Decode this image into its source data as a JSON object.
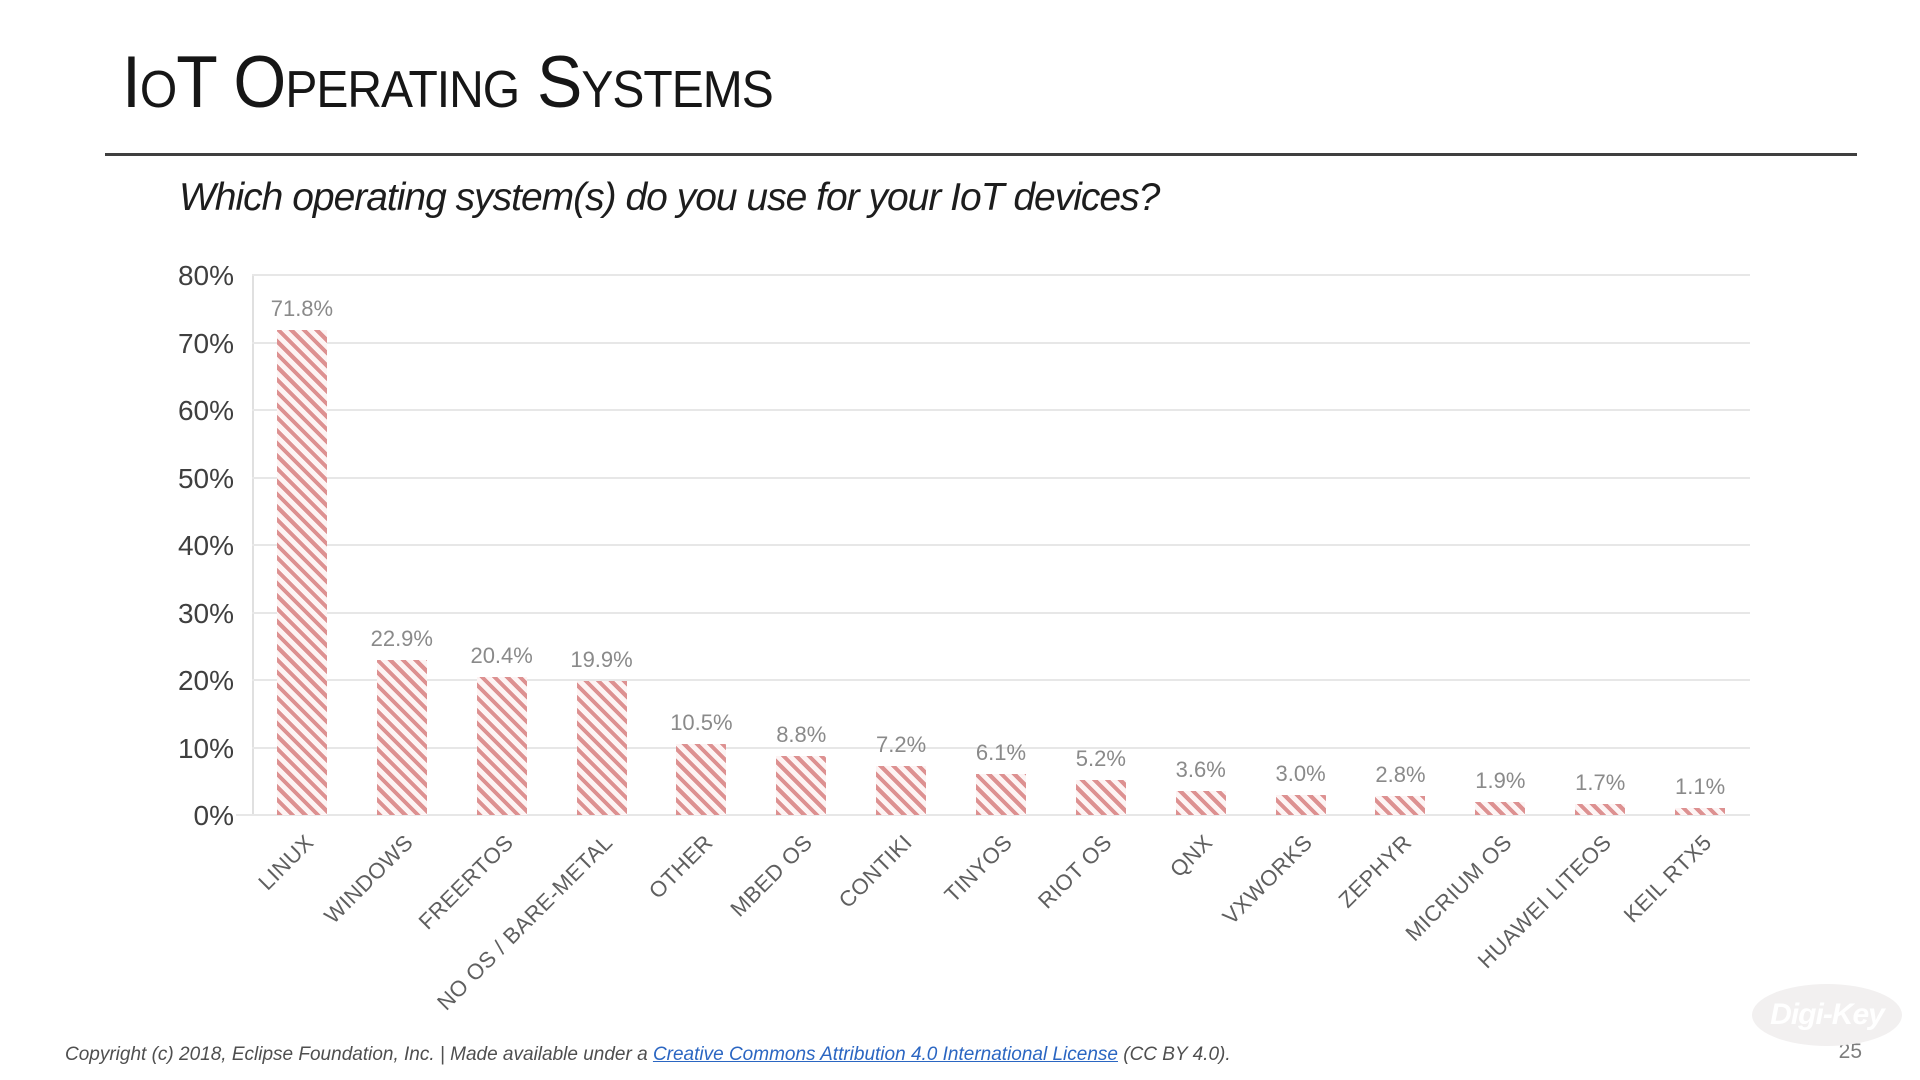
{
  "slide": {
    "title": "IoT Operating Systems",
    "subtitle": "Which operating system(s) do you use for your IoT devices?",
    "page_number": "25",
    "watermark_text": "Digi-Key"
  },
  "footer": {
    "copyright_prefix": "Copyright (c) 2018, Eclipse Foundation, Inc. | Made available under a ",
    "license_link_text": "Creative Commons Attribution 4.0 International License",
    "copyright_suffix": " (CC BY 4.0)."
  },
  "chart_data": {
    "type": "bar",
    "title": "Which operating system(s) do you use for your IoT devices?",
    "categories": [
      "LINUX",
      "WINDOWS",
      "FREERTOS",
      "NO OS / BARE-METAL",
      "OTHER",
      "MBED OS",
      "CONTIKI",
      "TINYOS",
      "RIOT OS",
      "QNX",
      "VXWORKS",
      "ZEPHYR",
      "MICRIUM OS",
      "HUAWEI LITEOS",
      "KEIL RTX5"
    ],
    "values": [
      71.8,
      22.9,
      20.4,
      19.9,
      10.5,
      8.8,
      7.2,
      6.1,
      5.2,
      3.6,
      3.0,
      2.8,
      1.9,
      1.7,
      1.1
    ],
    "value_labels": [
      "71.8%",
      "22.9%",
      "20.4%",
      "19.9%",
      "10.5%",
      "8.8%",
      "7.2%",
      "6.1%",
      "5.2%",
      "3.6%",
      "3.0%",
      "2.8%",
      "1.9%",
      "1.7%",
      "1.1%"
    ],
    "xlabel": "",
    "ylabel": "",
    "ylim": [
      0,
      80
    ],
    "y_tick_labels": [
      "80%",
      "70%",
      "60%",
      "50%",
      "40%",
      "30%",
      "20%",
      "10%",
      "0%"
    ],
    "grid": true,
    "legend": false,
    "bar_style": "diagonal-hatch",
    "bar_stripe_color": "#dd9191",
    "bar_background_color": "#fdf4f4",
    "gridline_color": "#e7e7e7"
  }
}
